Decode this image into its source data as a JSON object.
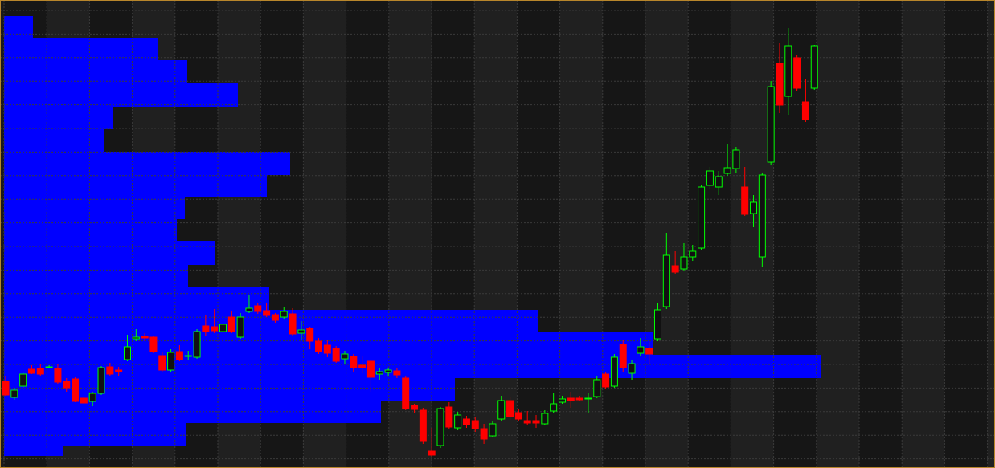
{
  "chart_data": {
    "type": "candlestick",
    "ylim": [
      0,
      583
    ],
    "up_color": "#00ff00",
    "down_color": "#ff0000",
    "open": [
      108,
      88,
      102,
      123,
      124,
      126,
      124,
      108,
      111,
      87,
      83,
      93,
      126,
      122,
      135,
      161,
      164,
      163,
      140,
      122,
      145,
      140,
      138,
      177,
      176,
      170,
      188,
      163,
      195,
      202,
      196,
      191,
      188,
      192,
      168,
      174,
      158,
      153,
      149,
      136,
      139,
      128,
      133,
      117,
      119,
      121,
      112,
      78,
      72,
      21,
      28,
      76,
      50,
      61,
      59,
      49,
      40,
      61,
      84,
      69,
      59,
      59,
      55,
      71,
      82,
      87,
      87,
      86,
      89,
      117,
      102,
      154,
      118,
      143,
      149,
      161,
      201,
      252,
      248,
      263,
      274,
      352,
      350,
      367,
      373,
      350,
      317,
      263,
      381,
      504,
      463,
      511,
      456,
      473
    ],
    "high": [
      115,
      100,
      120,
      128,
      130,
      128,
      130,
      112,
      113,
      89,
      95,
      127,
      131,
      126,
      166,
      173,
      168,
      165,
      145,
      148,
      153,
      146,
      173,
      190,
      198,
      186,
      196,
      193,
      215,
      206,
      206,
      193,
      200,
      199,
      183,
      176,
      162,
      160,
      152,
      146,
      142,
      140,
      135,
      124,
      125,
      124,
      115,
      80,
      75,
      50,
      76,
      82,
      70,
      65,
      63,
      55,
      58,
      90,
      88,
      73,
      71,
      66,
      72,
      93,
      90,
      95,
      90,
      93,
      115,
      120,
      142,
      159,
      135,
      162,
      157,
      205,
      293,
      270,
      280,
      278,
      353,
      375,
      370,
      403,
      400,
      375,
      340,
      368,
      482,
      530,
      548,
      515,
      485,
      527
    ],
    "low": [
      90,
      85,
      100,
      117,
      115,
      125,
      105,
      95,
      82,
      80,
      77,
      91,
      115,
      115,
      133,
      158,
      158,
      143,
      120,
      120,
      133,
      134,
      136,
      165,
      168,
      168,
      168,
      161,
      193,
      192,
      188,
      181,
      185,
      165,
      160,
      148,
      142,
      138,
      131,
      130,
      120,
      118,
      95,
      110,
      115,
      112,
      72,
      68,
      30,
      14,
      25,
      48,
      47,
      50,
      45,
      30,
      38,
      58,
      60,
      58,
      54,
      50,
      53,
      69,
      80,
      75,
      83,
      68,
      87,
      98,
      100,
      120,
      110,
      140,
      130,
      158,
      198,
      242,
      245,
      258,
      272,
      348,
      340,
      364,
      368,
      314,
      300,
      250,
      378,
      442,
      440,
      470,
      431,
      471
    ],
    "close": [
      91,
      97,
      117,
      118,
      117,
      126,
      107,
      100,
      83,
      81,
      93,
      125,
      117,
      120,
      151,
      163,
      162,
      145,
      122,
      144,
      135,
      140,
      170,
      170,
      171,
      179,
      170,
      188,
      199,
      195,
      190,
      184,
      195,
      167,
      172,
      158,
      145,
      143,
      133,
      142,
      125,
      125,
      113,
      120,
      122,
      116,
      74,
      73,
      34,
      16,
      74,
      51,
      66,
      54,
      49,
      36,
      55,
      84,
      64,
      61,
      56,
      56,
      68,
      80,
      86,
      84,
      85,
      87,
      110,
      101,
      138,
      125,
      130,
      151,
      142,
      197,
      265,
      244,
      263,
      270,
      350,
      370,
      363,
      374,
      396,
      316,
      331,
      365,
      475,
      452,
      526,
      473,
      434,
      526
    ],
    "profile": {
      "color": "#0000ff",
      "bins": [
        15,
        28,
        56,
        84,
        112,
        141,
        169,
        197,
        225,
        253,
        283,
        310,
        337,
        365,
        394,
        422,
        450,
        479,
        508,
        536,
        563
      ],
      "counts": [
        74,
        226,
        469,
        561,
        1017,
        807,
        664,
        330,
        229,
        263,
        215,
        225,
        327,
        356,
        125,
        135,
        291,
        228,
        192,
        36
      ]
    }
  }
}
